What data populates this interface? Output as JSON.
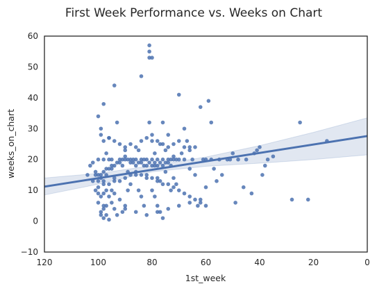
{
  "chart_data": {
    "type": "scatter",
    "title": "First Week Performance vs. Weeks on Chart",
    "xlabel": "1st_week",
    "ylabel": "weeks_on_chart",
    "xlim": [
      120,
      0
    ],
    "ylim": [
      -10,
      60
    ],
    "x_reversed": true,
    "x_ticks": [
      120,
      100,
      80,
      60,
      40,
      20,
      0
    ],
    "y_ticks": [
      -10,
      0,
      10,
      20,
      30,
      40,
      50,
      60
    ],
    "x_tick_labels": [
      "120",
      "100",
      "80",
      "60",
      "40",
      "20",
      "0"
    ],
    "y_tick_labels": [
      "−10",
      "0",
      "10",
      "20",
      "30",
      "40",
      "50",
      "60"
    ],
    "grid": false,
    "point_color": "#4c72b0",
    "band_color": "#c9d3e6",
    "regression": {
      "x": [
        120,
        0
      ],
      "y": [
        11.2,
        27.6
      ]
    },
    "confidence_band": {
      "x": [
        120,
        100,
        80,
        60,
        40,
        20,
        0
      ],
      "lower": [
        8.5,
        12.0,
        16.0,
        17.8,
        18.8,
        20.0,
        21.5
      ],
      "upper": [
        14.0,
        15.5,
        18.0,
        20.8,
        24.5,
        28.8,
        33.5
      ]
    },
    "points": [
      [
        100,
        34
      ],
      [
        99,
        30
      ],
      [
        99,
        28
      ],
      [
        98,
        26
      ],
      [
        96,
        27
      ],
      [
        98,
        20
      ],
      [
        97,
        22
      ],
      [
        99,
        15
      ],
      [
        100,
        13
      ],
      [
        98,
        12
      ],
      [
        97,
        10
      ],
      [
        99,
        8
      ],
      [
        100,
        6
      ],
      [
        98,
        4
      ],
      [
        99,
        3
      ],
      [
        97,
        2
      ],
      [
        98,
        1
      ],
      [
        99,
        2
      ],
      [
        96,
        0.5
      ],
      [
        97,
        5
      ],
      [
        96,
        8
      ],
      [
        95,
        10
      ],
      [
        94,
        14
      ],
      [
        95,
        17
      ],
      [
        96,
        20
      ],
      [
        97,
        15
      ],
      [
        98,
        13
      ],
      [
        99,
        14
      ],
      [
        100,
        11
      ],
      [
        101,
        10
      ],
      [
        100,
        20
      ],
      [
        95,
        20
      ],
      [
        94,
        44
      ],
      [
        93,
        32
      ],
      [
        92,
        20
      ],
      [
        91,
        18
      ],
      [
        90,
        23
      ],
      [
        90,
        20
      ],
      [
        89,
        16
      ],
      [
        88,
        19
      ],
      [
        88,
        12
      ],
      [
        89,
        10
      ],
      [
        90,
        5
      ],
      [
        91,
        3
      ],
      [
        92,
        7
      ],
      [
        93,
        2
      ],
      [
        94,
        9
      ],
      [
        95,
        6
      ],
      [
        87,
        20
      ],
      [
        86,
        18
      ],
      [
        86,
        15
      ],
      [
        85,
        23
      ],
      [
        84,
        20
      ],
      [
        85,
        10
      ],
      [
        84,
        8
      ],
      [
        83,
        5
      ],
      [
        84,
        47
      ],
      [
        83,
        20
      ],
      [
        82,
        15
      ],
      [
        82,
        20
      ],
      [
        81,
        55
      ],
      [
        81,
        57
      ],
      [
        81,
        53
      ],
      [
        80,
        53
      ],
      [
        81,
        32
      ],
      [
        80,
        26
      ],
      [
        80,
        20
      ],
      [
        79,
        22
      ],
      [
        79,
        18
      ],
      [
        78,
        20
      ],
      [
        78,
        14
      ],
      [
        77,
        13
      ],
      [
        80,
        10
      ],
      [
        79,
        8
      ],
      [
        78,
        5
      ],
      [
        77,
        3
      ],
      [
        76,
        1
      ],
      [
        77,
        25
      ],
      [
        76,
        32
      ],
      [
        76,
        20
      ],
      [
        75,
        16
      ],
      [
        75,
        23
      ],
      [
        74,
        28
      ],
      [
        74,
        20
      ],
      [
        73,
        18
      ],
      [
        72,
        21
      ],
      [
        72,
        14
      ],
      [
        73,
        10
      ],
      [
        71,
        12
      ],
      [
        70,
        41
      ],
      [
        70,
        20
      ],
      [
        69,
        22
      ],
      [
        68,
        20
      ],
      [
        68,
        30
      ],
      [
        67,
        26
      ],
      [
        66,
        24
      ],
      [
        66,
        17
      ],
      [
        65,
        20
      ],
      [
        64,
        24
      ],
      [
        64,
        15
      ],
      [
        63,
        5
      ],
      [
        62,
        37
      ],
      [
        61,
        20
      ],
      [
        60,
        20
      ],
      [
        60,
        11
      ],
      [
        59,
        39
      ],
      [
        58,
        32
      ],
      [
        58,
        20
      ],
      [
        57,
        17
      ],
      [
        56,
        13
      ],
      [
        55,
        20
      ],
      [
        54,
        15
      ],
      [
        52,
        20
      ],
      [
        51,
        20
      ],
      [
        50,
        22
      ],
      [
        49,
        6
      ],
      [
        48,
        20
      ],
      [
        46,
        11
      ],
      [
        45,
        20
      ],
      [
        43,
        9
      ],
      [
        42,
        22
      ],
      [
        41,
        23
      ],
      [
        40,
        24
      ],
      [
        39,
        15
      ],
      [
        38,
        18
      ],
      [
        37,
        20
      ],
      [
        35,
        21
      ],
      [
        28,
        7
      ],
      [
        25,
        32
      ],
      [
        22,
        7
      ],
      [
        15,
        26
      ],
      [
        104,
        15
      ],
      [
        103,
        18
      ],
      [
        102,
        19
      ],
      [
        101,
        16
      ],
      [
        102,
        13
      ],
      [
        101,
        15
      ],
      [
        100,
        15
      ],
      [
        98,
        16
      ],
      [
        97,
        17
      ],
      [
        96,
        17
      ],
      [
        95,
        18
      ],
      [
        94,
        18
      ],
      [
        93,
        19
      ],
      [
        92,
        19
      ],
      [
        91,
        20
      ],
      [
        90,
        21
      ],
      [
        89,
        20
      ],
      [
        88,
        20
      ],
      [
        87,
        19
      ],
      [
        86,
        20
      ],
      [
        85,
        19
      ],
      [
        84,
        19
      ],
      [
        83,
        18
      ],
      [
        82,
        18
      ],
      [
        81,
        19
      ],
      [
        80,
        18
      ],
      [
        79,
        19
      ],
      [
        78,
        18
      ],
      [
        77,
        19
      ],
      [
        76,
        18
      ],
      [
        75,
        19
      ],
      [
        74,
        19
      ],
      [
        73,
        20
      ],
      [
        72,
        20
      ],
      [
        71,
        20
      ],
      [
        100,
        9
      ],
      [
        98,
        9
      ],
      [
        96,
        12
      ],
      [
        94,
        13
      ],
      [
        92,
        13
      ],
      [
        90,
        14
      ],
      [
        88,
        15
      ],
      [
        86,
        16
      ],
      [
        84,
        15
      ],
      [
        82,
        14
      ],
      [
        80,
        14
      ],
      [
        78,
        13
      ],
      [
        76,
        12
      ],
      [
        74,
        12
      ],
      [
        72,
        11
      ],
      [
        70,
        10
      ],
      [
        68,
        9
      ],
      [
        66,
        8
      ],
      [
        64,
        7
      ],
      [
        62,
        6
      ],
      [
        60,
        5
      ],
      [
        98,
        5
      ],
      [
        94,
        4
      ],
      [
        90,
        4
      ],
      [
        86,
        3
      ],
      [
        82,
        2
      ],
      [
        78,
        3
      ],
      [
        74,
        4
      ],
      [
        70,
        5
      ],
      [
        66,
        6
      ],
      [
        62,
        7
      ],
      [
        98,
        38
      ],
      [
        96,
        27
      ],
      [
        94,
        26
      ],
      [
        92,
        25
      ],
      [
        90,
        24
      ],
      [
        88,
        25
      ],
      [
        86,
        24
      ],
      [
        84,
        26
      ],
      [
        82,
        27
      ],
      [
        80,
        28
      ],
      [
        78,
        26
      ],
      [
        76,
        25
      ],
      [
        74,
        24
      ],
      [
        72,
        25
      ],
      [
        70,
        26
      ],
      [
        68,
        24
      ],
      [
        66,
        23
      ]
    ]
  }
}
